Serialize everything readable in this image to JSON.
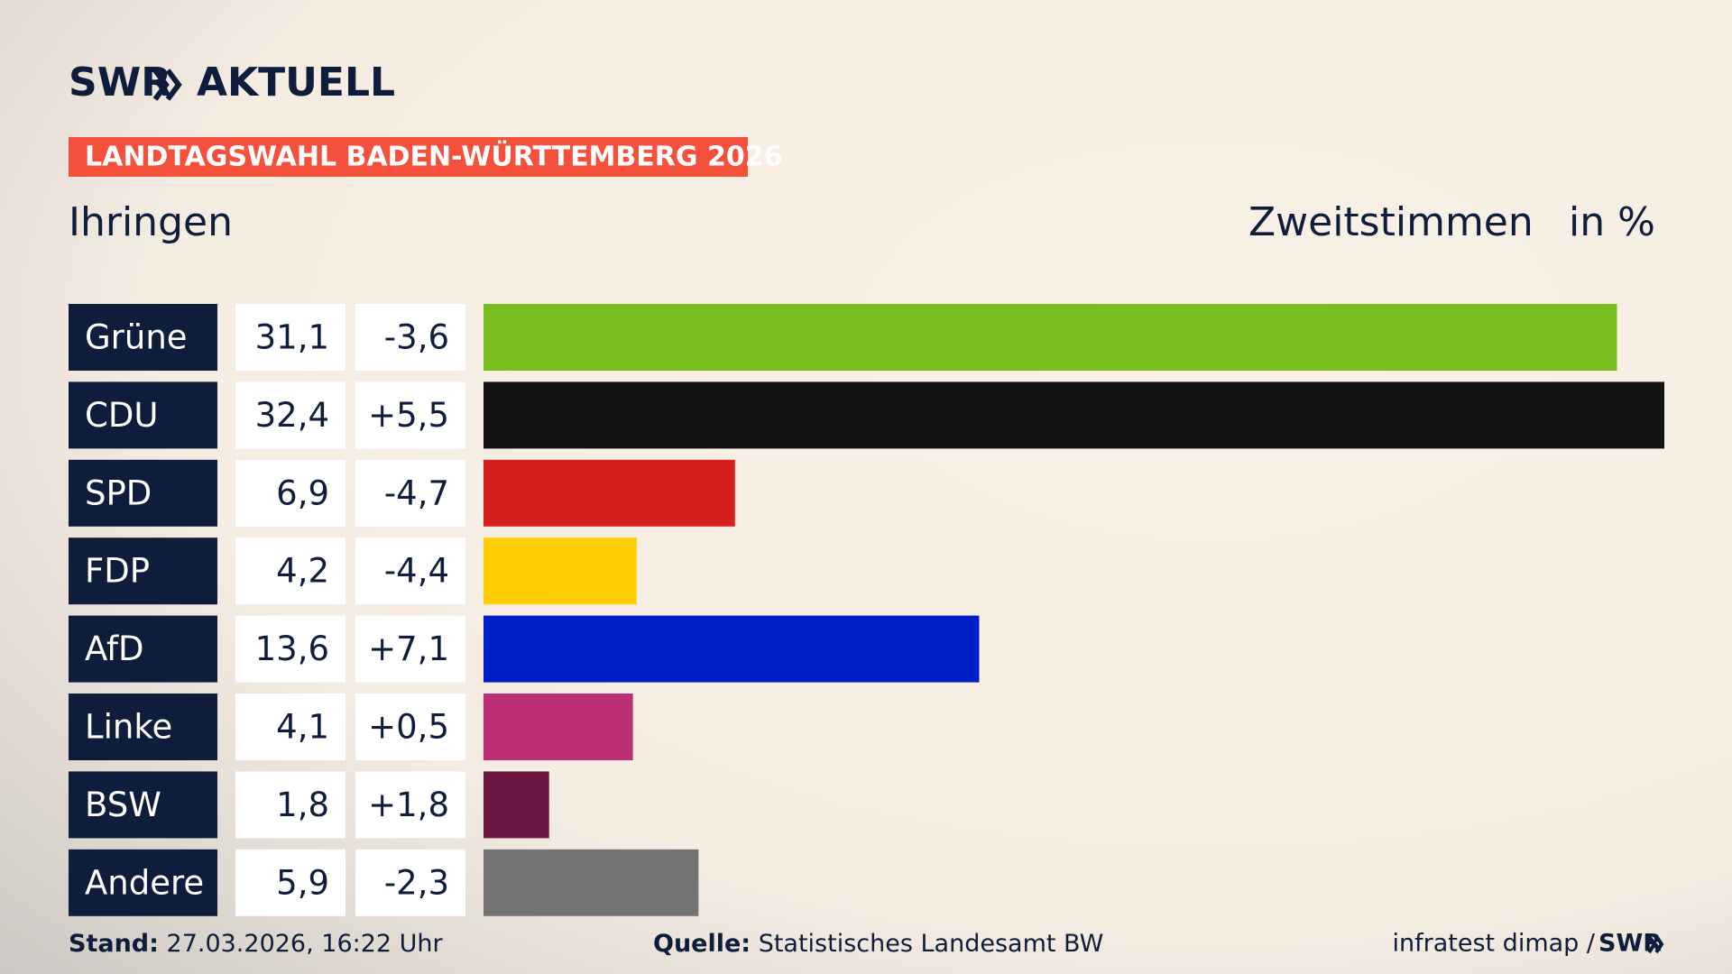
{
  "header": {
    "brand": "SWR",
    "section": "AKTUELL",
    "banner": "LANDTAGSWAHL BADEN-WÜRTTEMBERG 2026"
  },
  "chart_data": {
    "type": "bar",
    "title": "Ihringen",
    "subtitle": "Zweitstimmen",
    "unit": "in %",
    "categories": [
      "Grüne",
      "CDU",
      "SPD",
      "FDP",
      "AfD",
      "Linke",
      "BSW",
      "Andere"
    ],
    "values": [
      31.1,
      32.4,
      6.9,
      4.2,
      13.6,
      4.1,
      1.8,
      5.9
    ],
    "value_labels": [
      "31,1",
      "32,4",
      "6,9",
      "4,2",
      "13,6",
      "4,1",
      "1,8",
      "5,9"
    ],
    "changes": [
      {
        "value": -3.6,
        "label": "-3,6"
      },
      {
        "value": 5.5,
        "label": "+5,5"
      },
      {
        "value": -4.7,
        "label": "-4,7"
      },
      {
        "value": -4.4,
        "label": "-4,4"
      },
      {
        "value": 7.1,
        "label": "+7,1"
      },
      {
        "value": 0.5,
        "label": "+0,5"
      },
      {
        "value": 1.8,
        "label": "+1,8"
      },
      {
        "value": -2.3,
        "label": "-2,3"
      }
    ],
    "colors": [
      "#78be1e",
      "#121212",
      "#d7201e",
      "#ffcc00",
      "#001ec8",
      "#be3075",
      "#6b1540",
      "#737373"
    ]
  },
  "footer": {
    "stand_label": "Stand:",
    "stand": "27.03.2026, 16:22 Uhr",
    "source_label": "Quelle:",
    "source": "Statistisches Landesamt BW",
    "credit": "infratest dimap /",
    "credit_brand": "SWR"
  }
}
